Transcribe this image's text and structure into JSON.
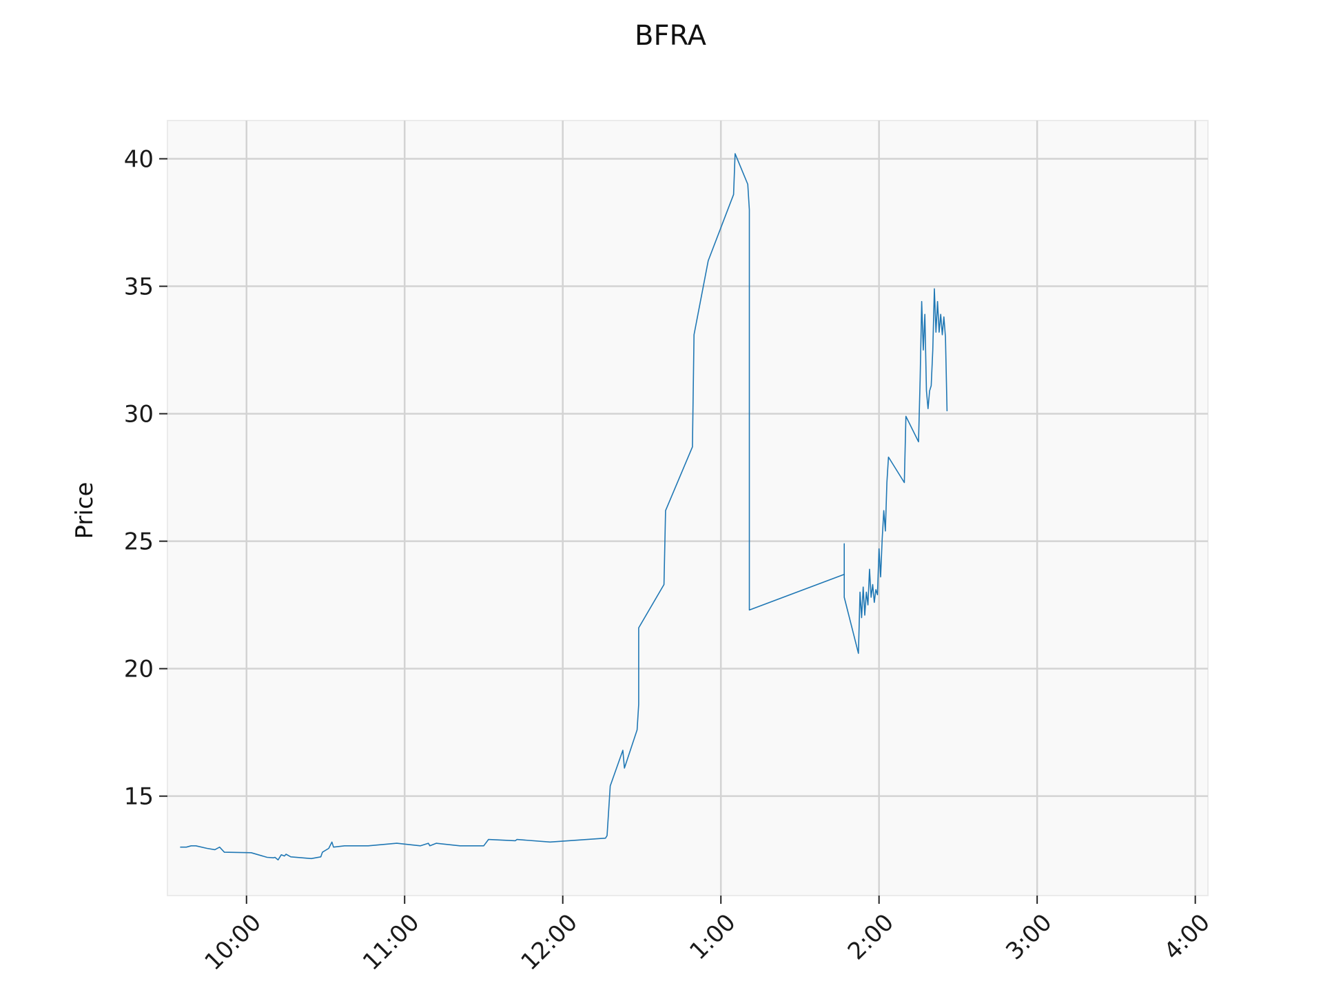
{
  "chart_data": {
    "type": "line",
    "title": "BFRA",
    "xlabel": "",
    "ylabel": "Price",
    "x_unit": "time of day (hours, 24h)",
    "xlim": [
      9.5,
      16.08
    ],
    "ylim": [
      11.1,
      41.5
    ],
    "x_ticks": [
      {
        "value": 10,
        "label": "10:00"
      },
      {
        "value": 11,
        "label": "11:00"
      },
      {
        "value": 12,
        "label": "12:00"
      },
      {
        "value": 13,
        "label": "1:00"
      },
      {
        "value": 14,
        "label": "2:00"
      },
      {
        "value": 15,
        "label": "3:00"
      },
      {
        "value": 16,
        "label": "4:00"
      }
    ],
    "y_ticks": [
      {
        "value": 15,
        "label": "15"
      },
      {
        "value": 20,
        "label": "20"
      },
      {
        "value": 25,
        "label": "25"
      },
      {
        "value": 30,
        "label": "30"
      },
      {
        "value": 35,
        "label": "35"
      },
      {
        "value": 40,
        "label": "40"
      }
    ],
    "grid": true,
    "colors": {
      "line": "#1f77b4",
      "plot_bg": "#f9f9f9",
      "grid": "#d3d3d3"
    },
    "series": [
      {
        "name": "",
        "points": [
          [
            9.58,
            13.0
          ],
          [
            9.62,
            13.0
          ],
          [
            9.65,
            13.05
          ],
          [
            9.68,
            13.05
          ],
          [
            9.75,
            12.95
          ],
          [
            9.8,
            12.9
          ],
          [
            9.83,
            13.0
          ],
          [
            9.86,
            12.8
          ],
          [
            10.03,
            12.78
          ],
          [
            10.13,
            12.6
          ],
          [
            10.17,
            12.58
          ],
          [
            10.18,
            12.6
          ],
          [
            10.2,
            12.5
          ],
          [
            10.22,
            12.7
          ],
          [
            10.24,
            12.65
          ],
          [
            10.25,
            12.72
          ],
          [
            10.28,
            12.62
          ],
          [
            10.41,
            12.55
          ],
          [
            10.47,
            12.62
          ],
          [
            10.48,
            12.8
          ],
          [
            10.52,
            12.95
          ],
          [
            10.54,
            13.2
          ],
          [
            10.55,
            13.0
          ],
          [
            10.62,
            13.05
          ],
          [
            10.77,
            13.05
          ],
          [
            10.95,
            13.15
          ],
          [
            11.1,
            13.05
          ],
          [
            11.15,
            13.15
          ],
          [
            11.16,
            13.05
          ],
          [
            11.2,
            13.15
          ],
          [
            11.35,
            13.05
          ],
          [
            11.5,
            13.05
          ],
          [
            11.53,
            13.3
          ],
          [
            11.7,
            13.25
          ],
          [
            11.71,
            13.3
          ],
          [
            11.92,
            13.2
          ],
          [
            12.27,
            13.35
          ],
          [
            12.28,
            13.45
          ],
          [
            12.3,
            15.4
          ],
          [
            12.38,
            16.8
          ],
          [
            12.39,
            16.1
          ],
          [
            12.47,
            17.6
          ],
          [
            12.48,
            18.6
          ],
          [
            12.48,
            21.6
          ],
          [
            12.64,
            23.3
          ],
          [
            12.65,
            26.2
          ],
          [
            12.82,
            28.7
          ],
          [
            12.83,
            33.1
          ],
          [
            12.92,
            36.0
          ],
          [
            13.08,
            38.6
          ],
          [
            13.09,
            40.2
          ],
          [
            13.17,
            39.0
          ],
          [
            13.18,
            38.0
          ],
          [
            13.18,
            22.3
          ],
          [
            13.78,
            23.7
          ],
          [
            13.78,
            24.9
          ],
          [
            13.78,
            22.8
          ],
          [
            13.87,
            20.6
          ],
          [
            13.88,
            23.0
          ],
          [
            13.89,
            22.0
          ],
          [
            13.9,
            23.2
          ],
          [
            13.91,
            22.1
          ],
          [
            13.92,
            23.0
          ],
          [
            13.93,
            22.5
          ],
          [
            13.94,
            23.9
          ],
          [
            13.95,
            22.8
          ],
          [
            13.96,
            23.3
          ],
          [
            13.97,
            22.6
          ],
          [
            13.98,
            23.1
          ],
          [
            13.99,
            22.9
          ],
          [
            14.0,
            24.7
          ],
          [
            14.01,
            23.6
          ],
          [
            14.02,
            25.1
          ],
          [
            14.03,
            26.2
          ],
          [
            14.04,
            25.4
          ],
          [
            14.05,
            27.3
          ],
          [
            14.06,
            28.3
          ],
          [
            14.16,
            27.3
          ],
          [
            14.17,
            29.9
          ],
          [
            14.25,
            28.9
          ],
          [
            14.26,
            31.3
          ],
          [
            14.27,
            34.4
          ],
          [
            14.28,
            32.5
          ],
          [
            14.29,
            33.9
          ],
          [
            14.3,
            30.9
          ],
          [
            14.31,
            30.2
          ],
          [
            14.32,
            30.9
          ],
          [
            14.33,
            31.1
          ],
          [
            14.34,
            32.5
          ],
          [
            14.35,
            34.9
          ],
          [
            14.36,
            33.2
          ],
          [
            14.37,
            34.4
          ],
          [
            14.38,
            33.2
          ],
          [
            14.39,
            33.9
          ],
          [
            14.4,
            33.1
          ],
          [
            14.41,
            33.8
          ],
          [
            14.42,
            33.0
          ],
          [
            14.43,
            30.1
          ]
        ]
      }
    ]
  }
}
